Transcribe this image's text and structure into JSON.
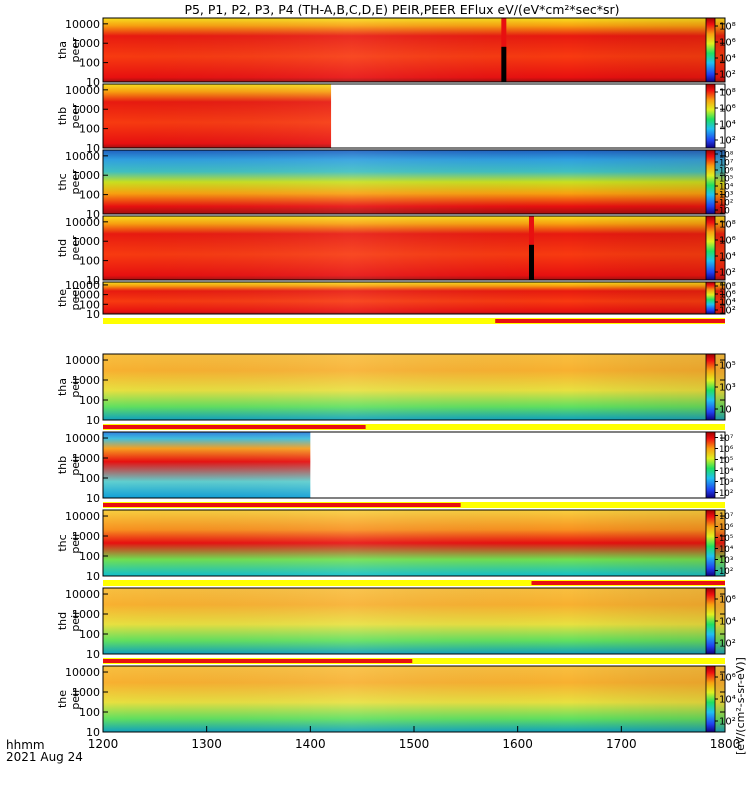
{
  "chart_data": {
    "type": "heatmap",
    "title": "P5, P1, P2, P3, P4 (TH-A,B,C,D,E) PEIR,PEER EFlux eV/(eV*cm²*sec*sr)",
    "x_label_line1": "hhmm",
    "x_label_line2": "2021 Aug 24",
    "x_ticks": [
      "1200",
      "1300",
      "1400",
      "1500",
      "1600",
      "1700",
      "1800"
    ],
    "xlim": [
      "1200",
      "1800"
    ],
    "y_ticks": [
      "10",
      "100",
      "1000",
      "10000"
    ],
    "y_scale": "log",
    "colorbar_label": "[eV/(cm²-s-sr-eV)]",
    "panels": [
      {
        "probe": "tha",
        "species": "peer",
        "cbar_ticks": [
          "10²",
          "10⁴",
          "10⁶",
          "10⁸"
        ],
        "data_gaps": [],
        "spikes": [
          "1552"
        ]
      },
      {
        "probe": "thb",
        "species": "peer",
        "cbar_ticks": [
          "10²",
          "10⁴",
          "10⁶",
          "10⁸"
        ],
        "data_gaps": [
          [
            "1412",
            "1672"
          ],
          [
            "1702",
            "1800"
          ]
        ],
        "spikes": []
      },
      {
        "probe": "thc",
        "species": "peer",
        "cbar_ticks": [
          "10",
          "10²",
          "10³",
          "10⁴",
          "10⁵",
          "10⁶",
          "10⁷",
          "10⁸"
        ],
        "data_gaps": [],
        "spikes": []
      },
      {
        "probe": "thd",
        "species": "peer",
        "cbar_ticks": [
          "10²",
          "10⁴",
          "10⁶",
          "10⁸"
        ],
        "data_gaps": [],
        "spikes": [
          "1568"
        ]
      },
      {
        "probe": "the",
        "species": "peer",
        "cbar_ticks": [
          "10²",
          "10⁴",
          "10⁶",
          "10⁸"
        ],
        "data_gaps": [],
        "spikes": []
      },
      {
        "probe": "tha",
        "species": "peir",
        "cbar_ticks": [
          "10",
          "10³",
          "10⁵"
        ],
        "data_gaps": [],
        "spikes": []
      },
      {
        "probe": "thb",
        "species": "peir",
        "cbar_ticks": [
          "10²",
          "10³",
          "10⁴",
          "10⁵",
          "10⁶",
          "10⁷"
        ],
        "data_gaps": [
          [
            "1400",
            "1800"
          ]
        ],
        "spikes": []
      },
      {
        "probe": "thc",
        "species": "peir",
        "cbar_ticks": [
          "10²",
          "10³",
          "10⁴",
          "10⁵",
          "10⁶",
          "10⁷"
        ],
        "data_gaps": [],
        "spikes": []
      },
      {
        "probe": "thd",
        "species": "peir",
        "cbar_ticks": [
          "10²",
          "10⁴",
          "10⁶"
        ],
        "data_gaps": [],
        "spikes": []
      },
      {
        "probe": "the",
        "species": "peir",
        "cbar_ticks": [
          "10²",
          "10⁴",
          "10⁶"
        ],
        "data_gaps": [],
        "spikes": []
      }
    ],
    "mode_bars": [
      {
        "red_from": "1547",
        "red_to": "1800"
      },
      {
        "red_from": "1200",
        "red_to": "1392"
      },
      {
        "red_from": "1200",
        "red_to": "1487"
      },
      {
        "red_from": "1568",
        "red_to": "1800"
      },
      {
        "red_from": "1200",
        "red_to": "1459"
      }
    ],
    "colors": {
      "red": "#e81010",
      "yellow": "#ffff00",
      "gap": "#ffffff"
    }
  }
}
